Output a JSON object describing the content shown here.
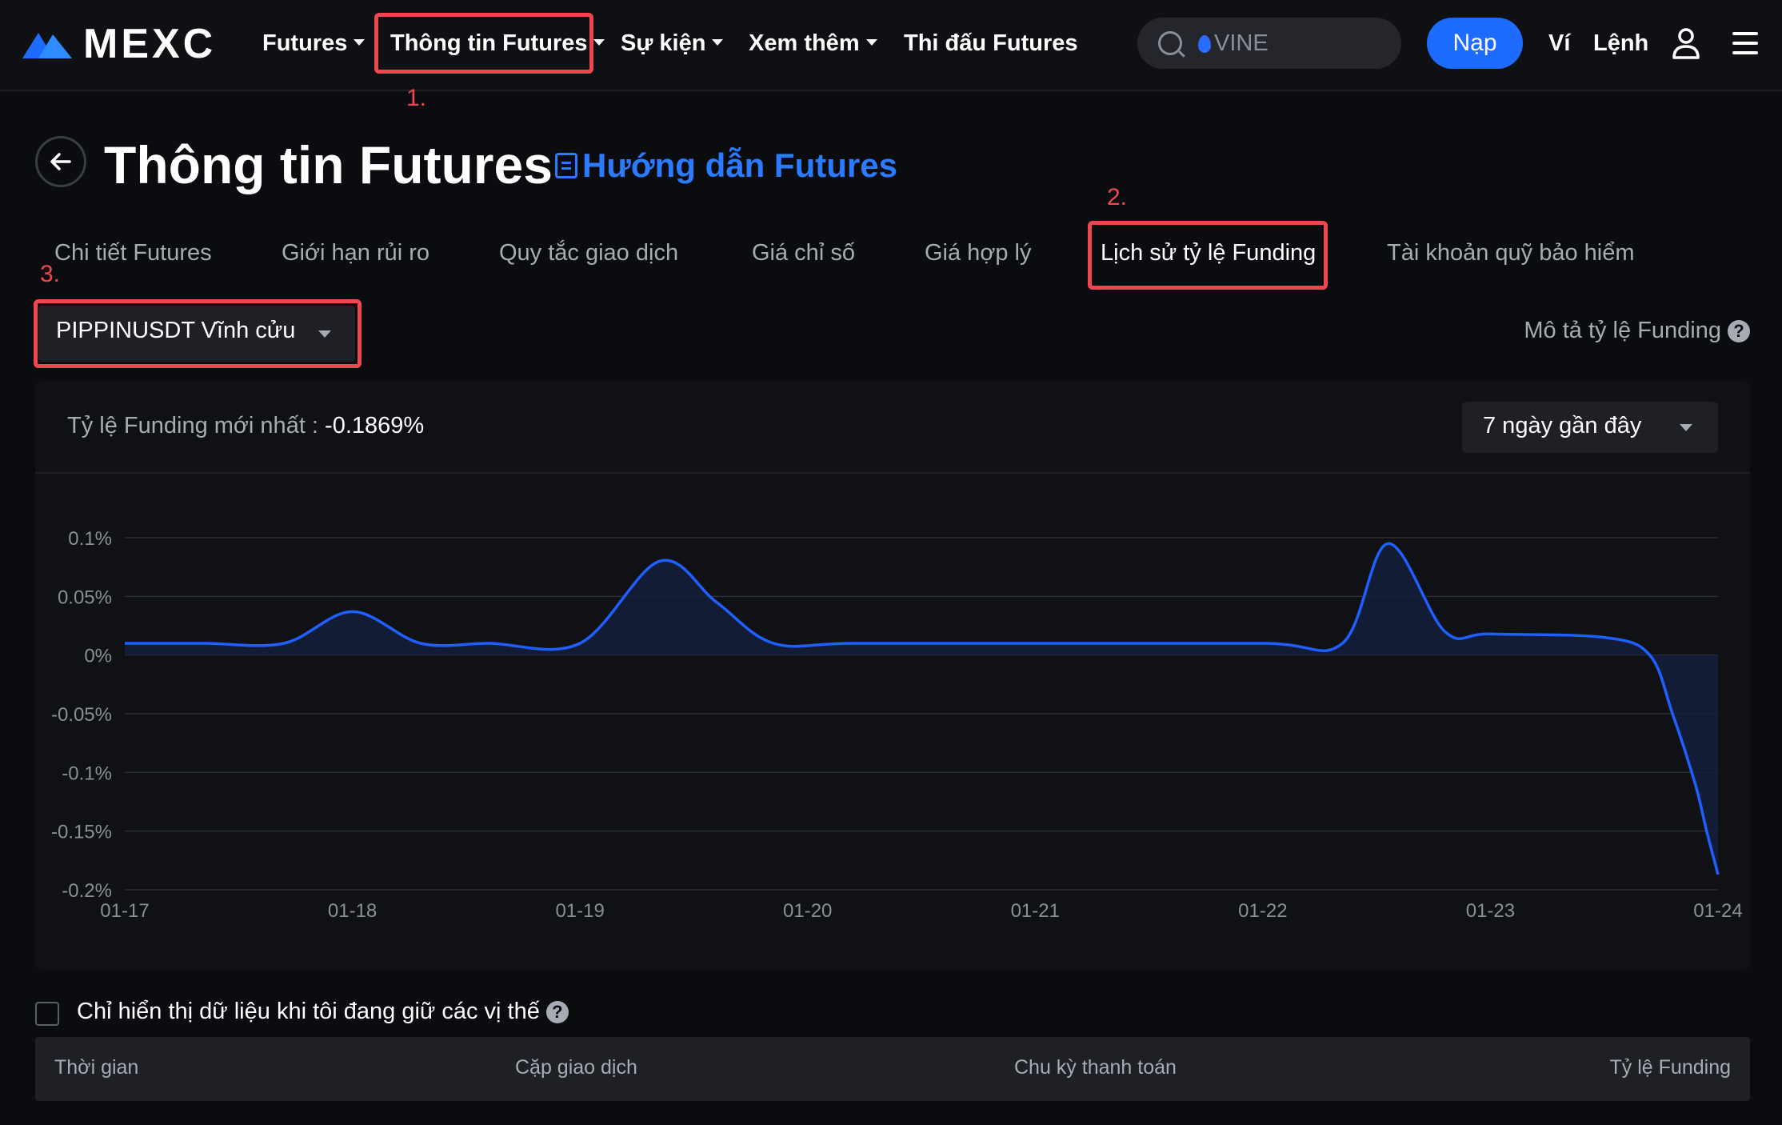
{
  "header": {
    "logo_text": "MEXC",
    "nav": [
      {
        "label": "Futures",
        "has_caret": true
      },
      {
        "label": "Thông tin Futures",
        "has_caret": true
      },
      {
        "label": "Sự kiện",
        "has_caret": true
      },
      {
        "label": "Xem thêm",
        "has_caret": true
      },
      {
        "label": "Thi đấu Futures",
        "has_caret": false
      }
    ],
    "search_value": "VINE",
    "deposit_label": "Nạp",
    "wallet_label": "Ví",
    "orders_label": "Lệnh"
  },
  "annotations": [
    "1.",
    "2.",
    "3."
  ],
  "page": {
    "title": "Thông tin Futures",
    "guide_link": "Hướng dẫn Futures"
  },
  "tabs": [
    {
      "label": "Chi tiết Futures",
      "active": false
    },
    {
      "label": "Giới hạn rủi ro",
      "active": false
    },
    {
      "label": "Quy tắc giao dịch",
      "active": false
    },
    {
      "label": "Giá chỉ số",
      "active": false
    },
    {
      "label": "Giá hợp lý",
      "active": false
    },
    {
      "label": "Lịch sử tỷ lệ Funding",
      "active": true
    },
    {
      "label": "Tài khoản quỹ bảo hiểm",
      "active": false
    }
  ],
  "pair_select": "PIPPINUSDT Vĩnh cửu",
  "funding_desc_link": "Mô tả tỷ lệ Funding",
  "latest": {
    "label": "Tỷ lệ Funding mới nhất : ",
    "value": "-0.1869%"
  },
  "range_select": "7 ngày gần đây",
  "chart_data": {
    "type": "area",
    "title": "",
    "xlabel": "",
    "ylabel": "",
    "x_ticks": [
      "01-17",
      "01-18",
      "01-19",
      "01-20",
      "01-21",
      "01-22",
      "01-23",
      "01-24"
    ],
    "y_ticks": [
      "0.1%",
      "0.05%",
      "0%",
      "-0.05%",
      "-0.1%",
      "-0.15%",
      "-0.2%"
    ],
    "ylim": [
      -0.2,
      0.1
    ],
    "unit": "%",
    "series": [
      {
        "color": "#1f5fff",
        "x": [
          0,
          0.35,
          0.7,
          1.0,
          1.3,
          1.6,
          2.0,
          2.35,
          2.6,
          2.85,
          3.2,
          4.0,
          5.0,
          5.35,
          5.55,
          5.8,
          6.0,
          6.5,
          6.7,
          6.8,
          6.9,
          6.95,
          7.0
        ],
        "values": [
          0.01,
          0.01,
          0.01,
          0.037,
          0.01,
          0.01,
          0.01,
          0.08,
          0.045,
          0.01,
          0.01,
          0.01,
          0.01,
          0.01,
          0.095,
          0.02,
          0.018,
          0.015,
          0.0,
          -0.05,
          -0.11,
          -0.15,
          -0.187
        ]
      }
    ]
  },
  "only_positions_label": "Chỉ hiển thị dữ liệu khi tôi đang giữ các vị thế",
  "table": {
    "columns": [
      "Thời gian",
      "Cặp giao dịch",
      "Chu kỳ thanh toán",
      "Tỷ lệ Funding"
    ]
  },
  "colors": {
    "accent": "#1d6bff",
    "annotation": "#f0464f",
    "background": "#0b0c0f"
  }
}
